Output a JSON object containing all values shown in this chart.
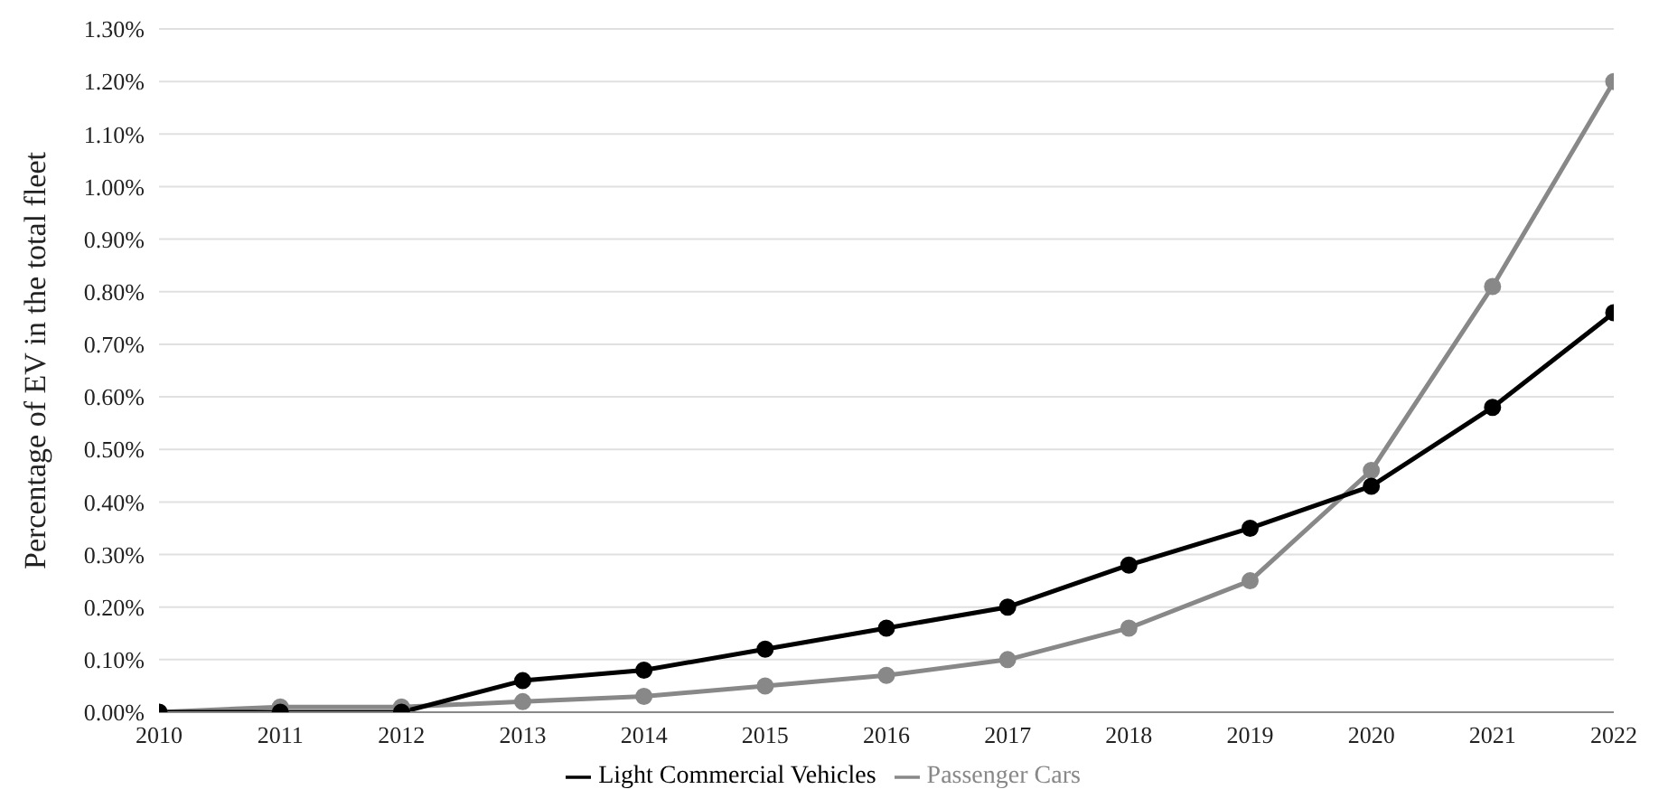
{
  "chart_data": {
    "type": "line",
    "ylabel": "Percentage of EV in the total fleet",
    "x": [
      2010,
      2011,
      2012,
      2013,
      2014,
      2015,
      2016,
      2017,
      2018,
      2019,
      2020,
      2021,
      2022
    ],
    "xlim": [
      2010,
      2022
    ],
    "xticks": [
      2010,
      2011,
      2012,
      2013,
      2014,
      2015,
      2016,
      2017,
      2018,
      2019,
      2020,
      2021,
      2022
    ],
    "ylim": [
      0,
      1.3
    ],
    "yticks": [
      {
        "value": 0,
        "label": "0.00%"
      },
      {
        "value": 0.1,
        "label": "0.10%"
      },
      {
        "value": 0.2,
        "label": "0.20%"
      },
      {
        "value": 0.3,
        "label": "0.30%"
      },
      {
        "value": 0.4,
        "label": "0.40%"
      },
      {
        "value": 0.5,
        "label": "0.50%"
      },
      {
        "value": 0.6,
        "label": "0.60%"
      },
      {
        "value": 0.7,
        "label": "0.70%"
      },
      {
        "value": 0.8,
        "label": "0.80%"
      },
      {
        "value": 0.9,
        "label": "0.90%"
      },
      {
        "value": 1.0,
        "label": "1.00%"
      },
      {
        "value": 1.1,
        "label": "1.10%"
      },
      {
        "value": 1.2,
        "label": "1.20%"
      },
      {
        "value": 1.3,
        "label": "1.30%"
      }
    ],
    "grid": "y",
    "legend": "bottom",
    "marker": "circle",
    "line_style": "solid",
    "series": [
      {
        "name": "Passenger Cars",
        "color": "#888888",
        "values": [
          0,
          0.01,
          0.01,
          0.02,
          0.03,
          0.05,
          0.07,
          0.1,
          0.16,
          0.25,
          0.46,
          0.81,
          1.2
        ]
      },
      {
        "name": "Light Commercial Vehicles",
        "color": "#000000",
        "values": [
          0,
          0,
          0,
          0.06,
          0.08,
          0.12,
          0.16,
          0.2,
          0.28,
          0.35,
          0.43,
          0.58,
          0.76
        ]
      }
    ]
  }
}
